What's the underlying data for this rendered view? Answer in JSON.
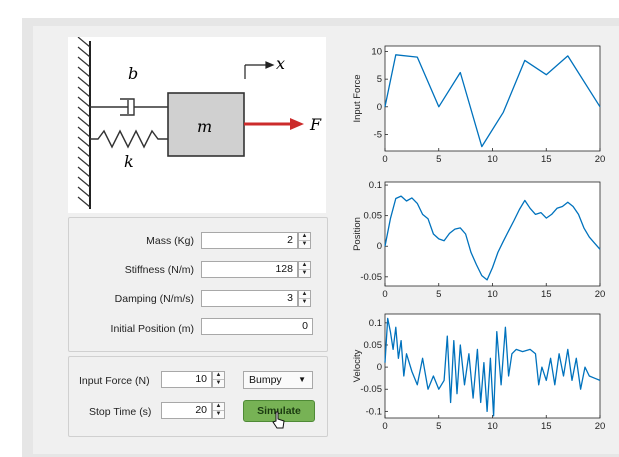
{
  "diagram": {
    "damper_label": "b",
    "spring_label": "k",
    "mass_label": "m",
    "force_label": "F",
    "x_label": "x",
    "colors": {
      "mass_fill": "#d0d0d0",
      "force_arrow": "#cc2b2b"
    }
  },
  "params": {
    "mass": {
      "label": "Mass (Kg)",
      "value": "2"
    },
    "stiffness": {
      "label": "Stiffness (N/m)",
      "value": "128"
    },
    "damping": {
      "label": "Damping (N/m/s)",
      "value": "3"
    },
    "initial_position": {
      "label": "Initial Position (m)",
      "value": "0"
    }
  },
  "simulation": {
    "input_force": {
      "label": "Input Force (N)",
      "value": "10"
    },
    "stop_time": {
      "label": "Stop Time (s)",
      "value": "20"
    },
    "force_type": "Bumpy",
    "simulate_label": "Simulate",
    "button_color": "#77b255"
  },
  "chart_data": [
    {
      "type": "line",
      "ylabel": "Input Force",
      "xlim": [
        0,
        20
      ],
      "ylim": [
        -8,
        11
      ],
      "xticks": [
        "0",
        "5",
        "10",
        "15",
        "20"
      ],
      "yticks": [
        "10",
        "5",
        "0",
        "-5"
      ],
      "ytick_values": [
        10,
        5,
        0,
        -5
      ],
      "x": [
        0,
        1,
        3,
        5,
        7,
        9,
        11,
        13,
        15,
        17,
        20
      ],
      "values": [
        0,
        9.4,
        9.0,
        0,
        6.2,
        -7.2,
        -1,
        8.4,
        5.8,
        9.2,
        0
      ]
    },
    {
      "type": "line",
      "ylabel": "Position",
      "xlim": [
        0,
        20
      ],
      "ylim": [
        -0.065,
        0.105
      ],
      "xticks": [
        "0",
        "5",
        "10",
        "15",
        "20"
      ],
      "yticks": [
        "0.1",
        "0.05",
        "0",
        "-0.05"
      ],
      "ytick_values": [
        0.1,
        0.05,
        0,
        -0.05
      ],
      "x": [
        0,
        0.5,
        1,
        1.5,
        2,
        2.5,
        3,
        3.5,
        4,
        4.5,
        5,
        5.5,
        6,
        6.5,
        7,
        7.5,
        8,
        8.5,
        9,
        9.5,
        10,
        10.5,
        11,
        11.5,
        12,
        12.5,
        13,
        13.5,
        14,
        14.5,
        15,
        15.5,
        16,
        16.5,
        17,
        17.5,
        18,
        18.5,
        19,
        19.5,
        20
      ],
      "values": [
        0,
        0.045,
        0.078,
        0.082,
        0.074,
        0.079,
        0.07,
        0.052,
        0.045,
        0.02,
        0.012,
        0.009,
        0.021,
        0.028,
        0.03,
        0.02,
        -0.01,
        -0.03,
        -0.048,
        -0.055,
        -0.035,
        -0.01,
        0.008,
        0.025,
        0.042,
        0.06,
        0.075,
        0.062,
        0.052,
        0.055,
        0.046,
        0.052,
        0.062,
        0.065,
        0.072,
        0.065,
        0.052,
        0.03,
        0.015,
        0.005,
        -0.005
      ]
    },
    {
      "type": "line",
      "ylabel": "Velocity",
      "xlim": [
        0,
        20
      ],
      "ylim": [
        -0.115,
        0.12
      ],
      "xticks": [
        "0",
        "5",
        "10",
        "15",
        "20"
      ],
      "yticks": [
        "0.1",
        "0.05",
        "0",
        "-0.05",
        "-0.1"
      ],
      "ytick_values": [
        0.1,
        0.05,
        0,
        -0.05,
        -0.1
      ],
      "x": [
        0,
        0.25,
        0.5,
        0.75,
        1,
        1.25,
        1.5,
        1.75,
        2,
        2.5,
        3,
        3.5,
        4,
        4.5,
        5,
        5.5,
        5.8,
        6.1,
        6.4,
        6.7,
        7,
        7.4,
        7.8,
        8.2,
        8.6,
        8.9,
        9.2,
        9.5,
        9.8,
        10.1,
        10.4,
        10.8,
        11.2,
        11.5,
        11.8,
        12.2,
        12.8,
        13.5,
        14,
        14.3,
        14.6,
        15,
        15.4,
        15.8,
        16.2,
        16.6,
        17,
        17.4,
        17.8,
        18.2,
        18.6,
        19,
        19.5,
        20
      ],
      "values": [
        0.01,
        0.11,
        0.08,
        0.04,
        0.09,
        0.02,
        0.06,
        -0.02,
        0.03,
        -0.01,
        -0.04,
        0.02,
        -0.05,
        -0.02,
        -0.05,
        -0.03,
        0.07,
        -0.08,
        0.06,
        -0.06,
        0.05,
        -0.04,
        0.03,
        -0.07,
        0.04,
        -0.08,
        0.01,
        -0.1,
        0.02,
        -0.11,
        0.08,
        -0.04,
        0.09,
        -0.02,
        0.03,
        0.04,
        0.035,
        0.04,
        0.03,
        -0.04,
        0.0,
        -0.03,
        0.02,
        -0.04,
        0.03,
        -0.02,
        0.04,
        -0.03,
        0.02,
        -0.05,
        0.0,
        -0.02,
        -0.025,
        -0.03
      ]
    }
  ]
}
